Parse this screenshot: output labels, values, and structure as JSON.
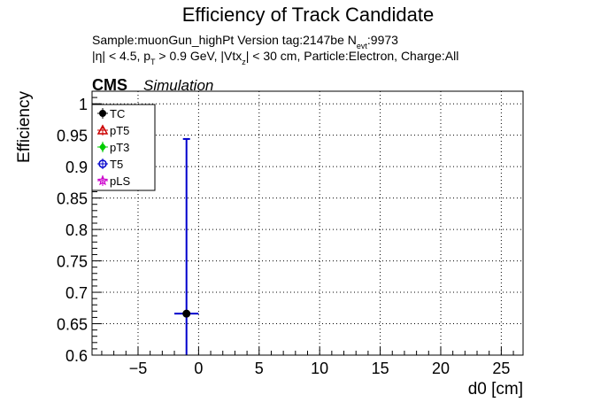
{
  "chart_data": {
    "type": "scatter",
    "title": "Efficiency of Track Candidate",
    "subtitle": {
      "line1_prefix": "Sample:muonGun_highPt   Version tag:2147be  N",
      "line1_sub": "evt",
      "line1_suffix": ":9973",
      "line2": [
        {
          "text": "|η| < 4.5, p",
          "kind": "normal"
        },
        {
          "text": "T",
          "kind": "sub"
        },
        {
          "text": " > 0.9 GeV, |Vtx",
          "kind": "normal"
        },
        {
          "text": "z",
          "kind": "sub"
        },
        {
          "text": "| < 30 cm, Particle:Electron, Charge:All",
          "kind": "normal"
        }
      ]
    },
    "cms_label": "CMS",
    "sim_label": "Simulation",
    "xlabel": "d0 [cm]",
    "ylabel": "Efficiency",
    "xlim": [
      -8.8,
      26.8
    ],
    "ylim": [
      0.6,
      1.02
    ],
    "xticks": [
      -5,
      0,
      5,
      10,
      15,
      20,
      25
    ],
    "xtick_labels": [
      "−5",
      "0",
      "5",
      "10",
      "15",
      "20",
      "25"
    ],
    "yticks": [
      0.6,
      0.65,
      0.7,
      0.75,
      0.8,
      0.85,
      0.9,
      0.95,
      1.0
    ],
    "ytick_labels": [
      "0.6",
      "0.65",
      "0.7",
      "0.75",
      "0.8",
      "0.85",
      "0.9",
      "0.95",
      "1"
    ],
    "grid": true,
    "legend_position": "top-left",
    "series": [
      {
        "name": "TC",
        "color": "#000000",
        "marker": "filled-circle",
        "points": [
          {
            "x": -1,
            "y": 0.666,
            "xerr": 1,
            "yerr_low": 0.066,
            "yerr_high": 0.278
          }
        ]
      },
      {
        "name": "pT5",
        "color": "#cc0000",
        "marker": "open-triangle",
        "points": []
      },
      {
        "name": "pT3",
        "color": "#00cc00",
        "marker": "filled-diamond",
        "points": []
      },
      {
        "name": "T5",
        "color": "#0000cc",
        "marker": "open-circle",
        "points": []
      },
      {
        "name": "pLS",
        "color": "#cc00cc",
        "marker": "open-star",
        "points": []
      }
    ],
    "error_bar_color": "#0000cc"
  }
}
